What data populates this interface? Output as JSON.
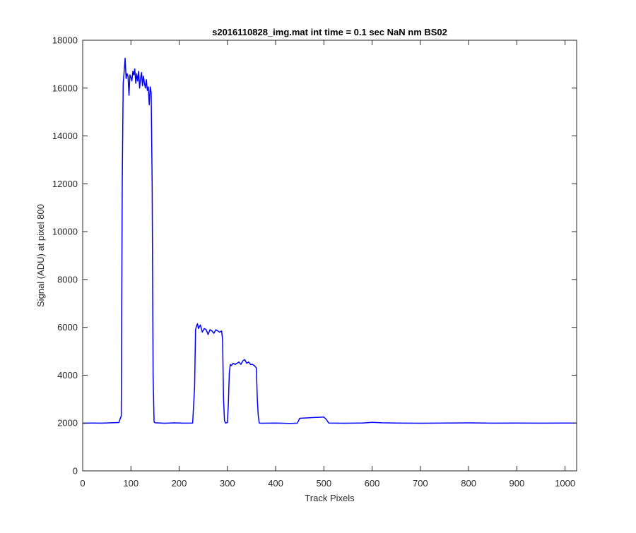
{
  "chart_data": {
    "type": "line",
    "title": "s2016110828_img.mat int time = 0.1 sec  NaN nm BS02",
    "xlabel": "Track Pixels",
    "ylabel": "Signal (ADU) at pixel 800",
    "xlim": [
      0,
      1024
    ],
    "ylim": [
      0,
      18000
    ],
    "xticks": [
      0,
      100,
      200,
      300,
      400,
      500,
      600,
      700,
      800,
      900,
      1000
    ],
    "yticks": [
      0,
      2000,
      4000,
      6000,
      8000,
      10000,
      12000,
      14000,
      16000,
      18000
    ],
    "grid": false,
    "legend": "none",
    "series": [
      {
        "color": "#0000ff",
        "x": [
          0,
          20,
          40,
          60,
          75,
          80,
          82,
          84,
          86,
          88,
          90,
          92,
          94,
          96,
          98,
          100,
          102,
          104,
          106,
          108,
          110,
          112,
          114,
          116,
          118,
          120,
          122,
          124,
          126,
          128,
          130,
          132,
          134,
          136,
          138,
          140,
          141,
          142,
          144,
          146,
          148,
          150,
          170,
          190,
          210,
          228,
          232,
          234,
          236,
          238,
          240,
          244,
          248,
          252,
          256,
          260,
          264,
          268,
          272,
          276,
          280,
          284,
          288,
          290,
          292,
          294,
          296,
          300,
          302,
          304,
          306,
          308,
          312,
          316,
          320,
          324,
          328,
          332,
          336,
          340,
          344,
          348,
          352,
          356,
          360,
          362,
          364,
          366,
          370,
          400,
          430,
          445,
          450,
          460,
          470,
          480,
          490,
          500,
          505,
          510,
          540,
          580,
          600,
          620,
          650,
          700,
          750,
          800,
          850,
          900,
          950,
          1000,
          1024
        ],
        "y": [
          1990,
          2000,
          1995,
          2010,
          2020,
          2300,
          12000,
          16200,
          16700,
          17250,
          16400,
          16600,
          16500,
          15700,
          16550,
          16450,
          16300,
          16700,
          16550,
          16800,
          16200,
          16600,
          16300,
          16700,
          16000,
          16400,
          16650,
          16100,
          16500,
          16200,
          16000,
          16350,
          15900,
          16050,
          15300,
          16050,
          15950,
          15800,
          12000,
          4000,
          2050,
          2010,
          1990,
          2005,
          1995,
          2000,
          3500,
          5900,
          6050,
          6150,
          5950,
          6100,
          5800,
          5950,
          5900,
          5700,
          5900,
          5850,
          5750,
          5900,
          5850,
          5800,
          5850,
          5500,
          3000,
          2100,
          2000,
          2020,
          2800,
          4100,
          4450,
          4400,
          4500,
          4450,
          4500,
          4550,
          4450,
          4600,
          4650,
          4500,
          4550,
          4450,
          4450,
          4400,
          4300,
          3000,
          2300,
          2000,
          1990,
          2000,
          1985,
          1995,
          2200,
          2210,
          2220,
          2230,
          2240,
          2250,
          2150,
          2000,
          1990,
          2000,
          2030,
          2010,
          2000,
          1990,
          2000,
          2005,
          1995,
          2000,
          1995,
          2000,
          2000
        ]
      }
    ]
  }
}
